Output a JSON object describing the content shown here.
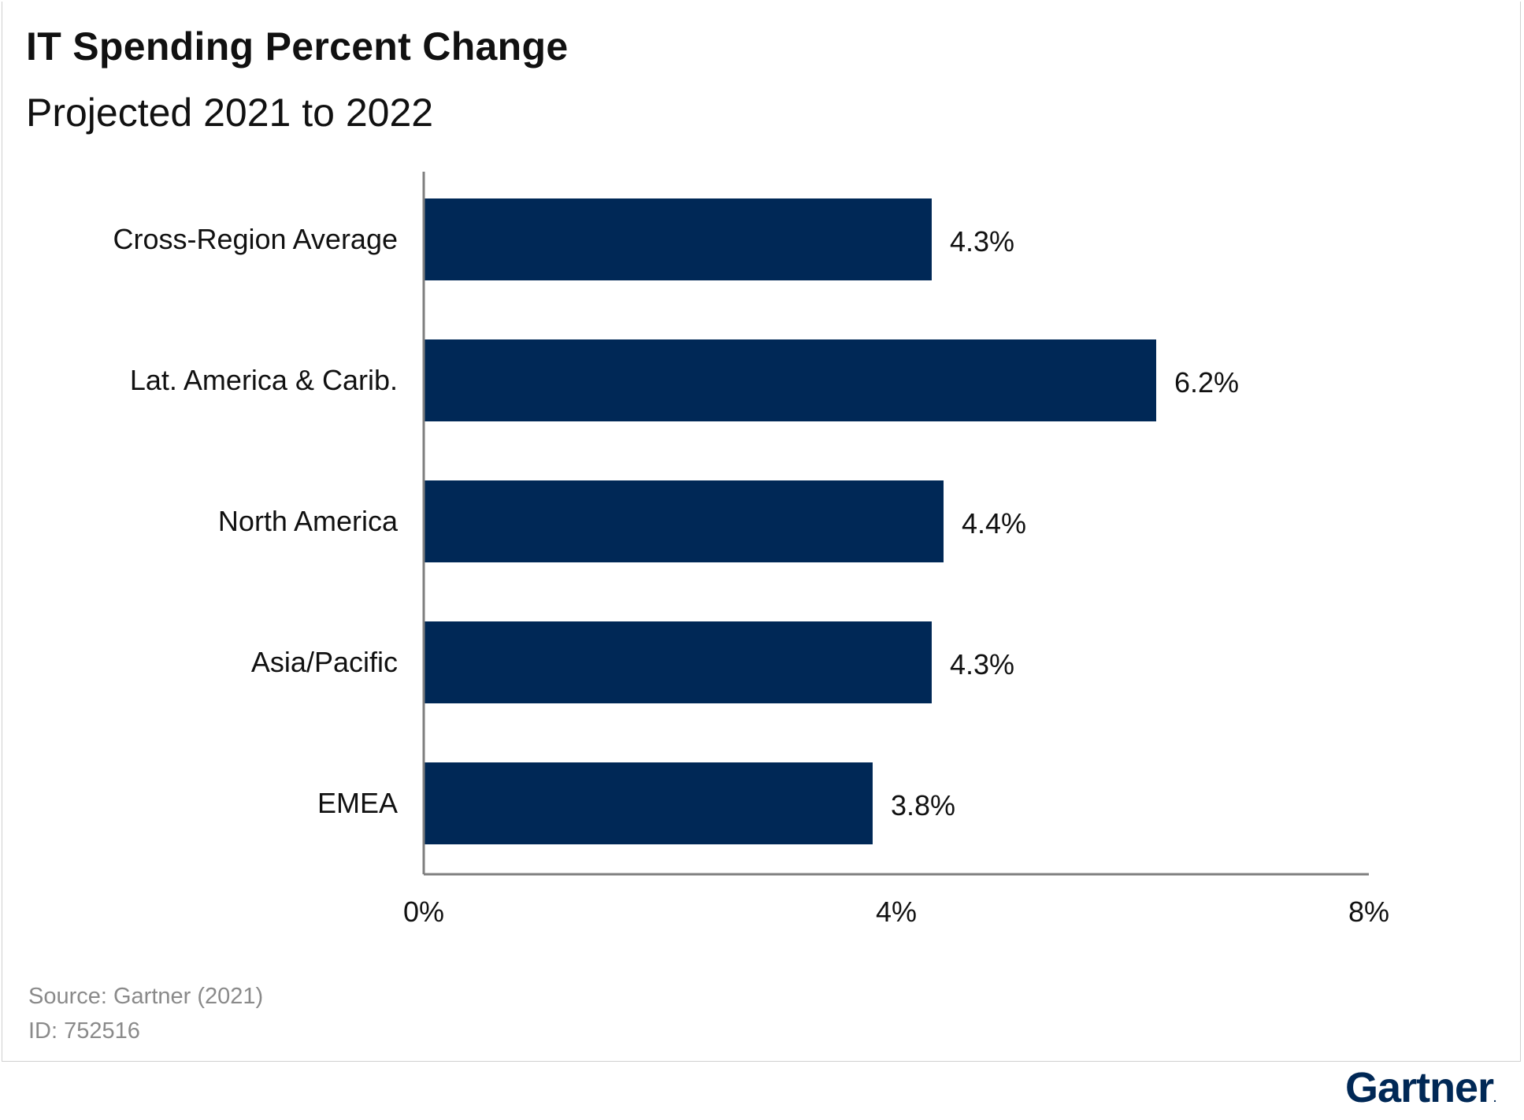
{
  "header": {
    "title": "IT Spending Percent Change",
    "subtitle": "Projected 2021 to 2022"
  },
  "footer": {
    "source": "Source: Gartner (2021)",
    "id": "ID: 752516",
    "logo": "Gartner",
    "logo_mark": "."
  },
  "colors": {
    "bar": "#002856",
    "axis": "#7f7f7f",
    "text": "#111111",
    "muted": "#8a8a8a"
  },
  "chart_data": {
    "type": "bar",
    "orientation": "horizontal",
    "title": "IT Spending Percent Change",
    "subtitle": "Projected 2021 to 2022",
    "categories": [
      "Cross-Region Average",
      "Lat. America & Carib.",
      "North America",
      "Asia/Pacific",
      "EMEA"
    ],
    "values": [
      4.3,
      6.2,
      4.4,
      4.3,
      3.8
    ],
    "value_labels": [
      "4.3%",
      "6.2%",
      "4.4%",
      "4.3%",
      "3.8%"
    ],
    "x_ticks": [
      0,
      4,
      8
    ],
    "x_tick_labels": [
      "0%",
      "4%",
      "8%"
    ],
    "xlim": [
      0,
      8
    ],
    "grid": false,
    "legend": "none"
  }
}
